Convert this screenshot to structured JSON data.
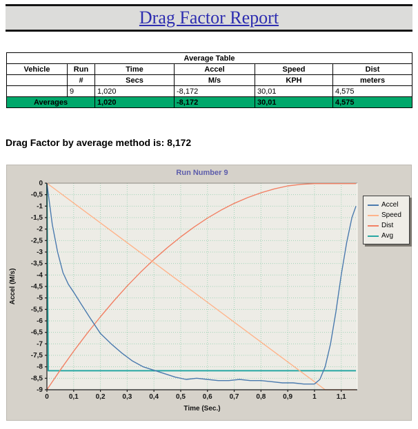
{
  "report": {
    "title": "Drag Factor Report",
    "drag_factor_line": "Drag Factor by average method is: 8,172"
  },
  "average_table": {
    "title": "Average Table",
    "columns": [
      {
        "name": "Vehicle",
        "sub": ""
      },
      {
        "name": "Run",
        "sub": "#"
      },
      {
        "name": "Time",
        "sub": "Secs"
      },
      {
        "name": "Accel",
        "sub": "M/s"
      },
      {
        "name": "Speed",
        "sub": "KPH"
      },
      {
        "name": "Dist",
        "sub": "meters"
      }
    ],
    "rows": [
      {
        "vehicle": "",
        "run": "9",
        "time": "1,020",
        "accel": "-8,172",
        "speed": "30,01",
        "dist": "4,575"
      }
    ],
    "averages": {
      "label": "Averages",
      "time": "1,020",
      "accel": "-8,172",
      "speed": "30,01",
      "dist": "4,575"
    }
  },
  "chart_data": {
    "type": "line",
    "title": "Run Number 9",
    "xlabel": "Time (Sec.)",
    "ylabel": "Accel (M/s)",
    "xlim": [
      0,
      1.16
    ],
    "ylim": [
      -9,
      0
    ],
    "grid": true,
    "legend_position": "right",
    "x_ticks": [
      0,
      0.1,
      0.2,
      0.3,
      0.4,
      0.5,
      0.6,
      0.7,
      0.8,
      0.9,
      1,
      1.1
    ],
    "x_tick_labels": [
      "0",
      "0,1",
      "0,2",
      "0,3",
      "0,4",
      "0,5",
      "0,6",
      "0,7",
      "0,8",
      "0,9",
      "1",
      "1,1"
    ],
    "y_ticks": [
      0,
      -0.5,
      -1,
      -1.5,
      -2,
      -2.5,
      -3,
      -3.5,
      -4,
      -4.5,
      -5,
      -5.5,
      -6,
      -6.5,
      -7,
      -7.5,
      -8,
      -8.5,
      -9
    ],
    "y_tick_labels": [
      "0",
      "-0,5",
      "-1",
      "-1,5",
      "-2",
      "-2,5",
      "-3",
      "-3,5",
      "-4",
      "-4,5",
      "-5",
      "-5,5",
      "-6",
      "-6,5",
      "-7",
      "-7,5",
      "-8",
      "-8,5",
      "-9"
    ],
    "series": [
      {
        "name": "Accel",
        "color": "#4a7aae",
        "width": 1.4,
        "points": [
          [
            0,
            0
          ],
          [
            0.01,
            -0.9
          ],
          [
            0.02,
            -1.8
          ],
          [
            0.04,
            -3.0
          ],
          [
            0.06,
            -3.9
          ],
          [
            0.08,
            -4.4
          ],
          [
            0.1,
            -4.75
          ],
          [
            0.13,
            -5.3
          ],
          [
            0.16,
            -5.85
          ],
          [
            0.2,
            -6.55
          ],
          [
            0.24,
            -7.0
          ],
          [
            0.28,
            -7.4
          ],
          [
            0.32,
            -7.75
          ],
          [
            0.36,
            -8.0
          ],
          [
            0.4,
            -8.15
          ],
          [
            0.44,
            -8.3
          ],
          [
            0.48,
            -8.45
          ],
          [
            0.52,
            -8.55
          ],
          [
            0.56,
            -8.5
          ],
          [
            0.6,
            -8.55
          ],
          [
            0.64,
            -8.6
          ],
          [
            0.68,
            -8.6
          ],
          [
            0.72,
            -8.55
          ],
          [
            0.76,
            -8.6
          ],
          [
            0.8,
            -8.6
          ],
          [
            0.84,
            -8.65
          ],
          [
            0.88,
            -8.7
          ],
          [
            0.92,
            -8.7
          ],
          [
            0.96,
            -8.75
          ],
          [
            1.0,
            -8.75
          ],
          [
            1.02,
            -8.55
          ],
          [
            1.04,
            -8.0
          ],
          [
            1.06,
            -7.0
          ],
          [
            1.08,
            -5.6
          ],
          [
            1.1,
            -4.0
          ],
          [
            1.12,
            -2.6
          ],
          [
            1.14,
            -1.5
          ],
          [
            1.155,
            -1.0
          ]
        ]
      },
      {
        "name": "Speed",
        "color": "#ffb38a",
        "width": 1.4,
        "points": [
          [
            0,
            0
          ],
          [
            0.2,
            -1.73
          ],
          [
            0.4,
            -3.46
          ],
          [
            0.6,
            -5.19
          ],
          [
            0.8,
            -6.92
          ],
          [
            1.0,
            -8.65
          ],
          [
            1.04,
            -9
          ],
          [
            1.155,
            -9
          ]
        ]
      },
      {
        "name": "Dist",
        "color": "#f28064",
        "width": 1.4,
        "points": [
          [
            0,
            -9
          ],
          [
            0.05,
            -8.14
          ],
          [
            0.1,
            -7.32
          ],
          [
            0.15,
            -6.55
          ],
          [
            0.2,
            -5.82
          ],
          [
            0.25,
            -5.13
          ],
          [
            0.3,
            -4.48
          ],
          [
            0.35,
            -3.88
          ],
          [
            0.4,
            -3.32
          ],
          [
            0.45,
            -2.81
          ],
          [
            0.5,
            -2.34
          ],
          [
            0.55,
            -1.91
          ],
          [
            0.6,
            -1.52
          ],
          [
            0.65,
            -1.18
          ],
          [
            0.7,
            -0.88
          ],
          [
            0.75,
            -0.63
          ],
          [
            0.8,
            -0.42
          ],
          [
            0.85,
            -0.25
          ],
          [
            0.9,
            -0.12
          ],
          [
            0.95,
            -0.05
          ],
          [
            1.0,
            -0.02
          ],
          [
            1.155,
            -0.02
          ]
        ]
      },
      {
        "name": "Avg",
        "color": "#27a7a3",
        "width": 2,
        "points": [
          [
            0,
            0
          ],
          [
            0.005,
            -8.172
          ],
          [
            1.155,
            -8.172
          ]
        ]
      }
    ]
  },
  "colors": {
    "title_text": "#2d2db0",
    "averages_row_bg": "#00a86b",
    "panel_bg": "#d6d2ca",
    "plot_bg": "#edece6",
    "grid": "#9fd3b6",
    "axis": "#1a1a1a",
    "chart_title": "#5d5dab",
    "legend_bg": "#efede7"
  }
}
